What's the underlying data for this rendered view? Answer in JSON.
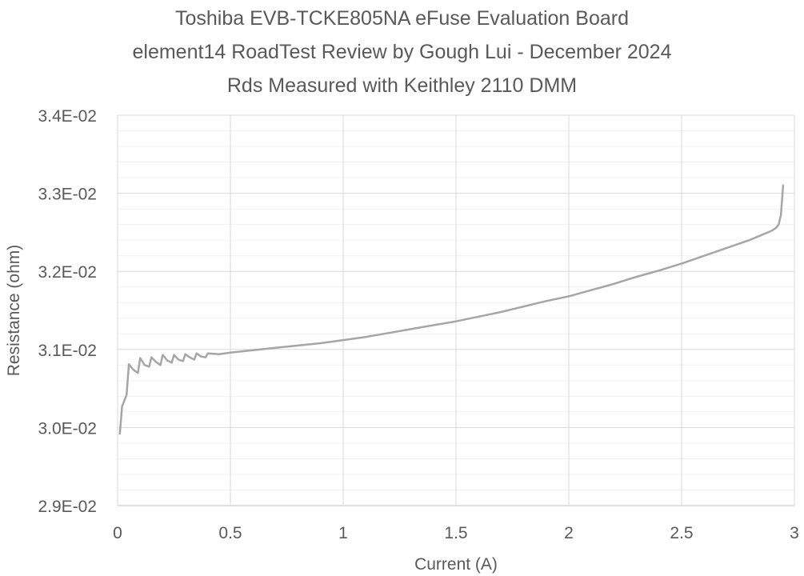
{
  "chart_data": {
    "type": "line",
    "title_lines": [
      "Toshiba EVB-TCKE805NA eFuse Evaluation Board",
      "element14 RoadTest Review by Gough Lui - December 2024",
      "Rds Measured with Keithley 2110 DMM"
    ],
    "xlabel": "Current (A)",
    "ylabel": "Resistance (ohm)",
    "xlim": [
      0,
      3
    ],
    "ylim": [
      0.029,
      0.034
    ],
    "x_ticks": [
      0,
      0.5,
      1,
      1.5,
      2,
      2.5,
      3
    ],
    "x_tick_labels": [
      "0",
      "0.5",
      "1",
      "1.5",
      "2",
      "2.5",
      "3"
    ],
    "y_ticks": [
      0.029,
      0.03,
      0.031,
      0.032,
      0.033,
      0.034
    ],
    "y_tick_labels": [
      "2.9E-02",
      "3.0E-02",
      "3.1E-02",
      "3.2E-02",
      "3.3E-02",
      "3.4E-02"
    ],
    "major_gridlines": true,
    "minor_gridlines": true,
    "line_color": "#a6a6a6",
    "grid_color": "#d9d9d9",
    "minor_grid_color": "#f0f0f0",
    "series": [
      {
        "name": "Rds",
        "x": [
          0.01,
          0.02,
          0.04,
          0.05,
          0.07,
          0.09,
          0.1,
          0.12,
          0.14,
          0.15,
          0.17,
          0.19,
          0.2,
          0.22,
          0.24,
          0.25,
          0.27,
          0.29,
          0.3,
          0.32,
          0.34,
          0.35,
          0.37,
          0.39,
          0.4,
          0.45,
          0.5,
          0.6,
          0.7,
          0.8,
          0.9,
          1.0,
          1.1,
          1.2,
          1.3,
          1.4,
          1.5,
          1.6,
          1.7,
          1.8,
          1.9,
          2.0,
          2.1,
          2.2,
          2.3,
          2.4,
          2.5,
          2.6,
          2.7,
          2.8,
          2.85,
          2.9,
          2.92,
          2.93,
          2.94,
          2.95
        ],
        "y": [
          0.02992,
          0.03027,
          0.03042,
          0.03081,
          0.03074,
          0.0307,
          0.03089,
          0.0308,
          0.03078,
          0.0309,
          0.03084,
          0.0308,
          0.03093,
          0.03086,
          0.03083,
          0.03093,
          0.03087,
          0.03085,
          0.03094,
          0.0309,
          0.03087,
          0.03095,
          0.03091,
          0.0309,
          0.03095,
          0.03094,
          0.03096,
          0.03099,
          0.03102,
          0.03105,
          0.03108,
          0.03112,
          0.03116,
          0.03121,
          0.03126,
          0.03131,
          0.03136,
          0.03142,
          0.03148,
          0.03155,
          0.03162,
          0.03168,
          0.03176,
          0.03184,
          0.03193,
          0.03201,
          0.0321,
          0.0322,
          0.0323,
          0.0324,
          0.03246,
          0.03252,
          0.03256,
          0.0326,
          0.03272,
          0.0331
        ]
      }
    ]
  }
}
